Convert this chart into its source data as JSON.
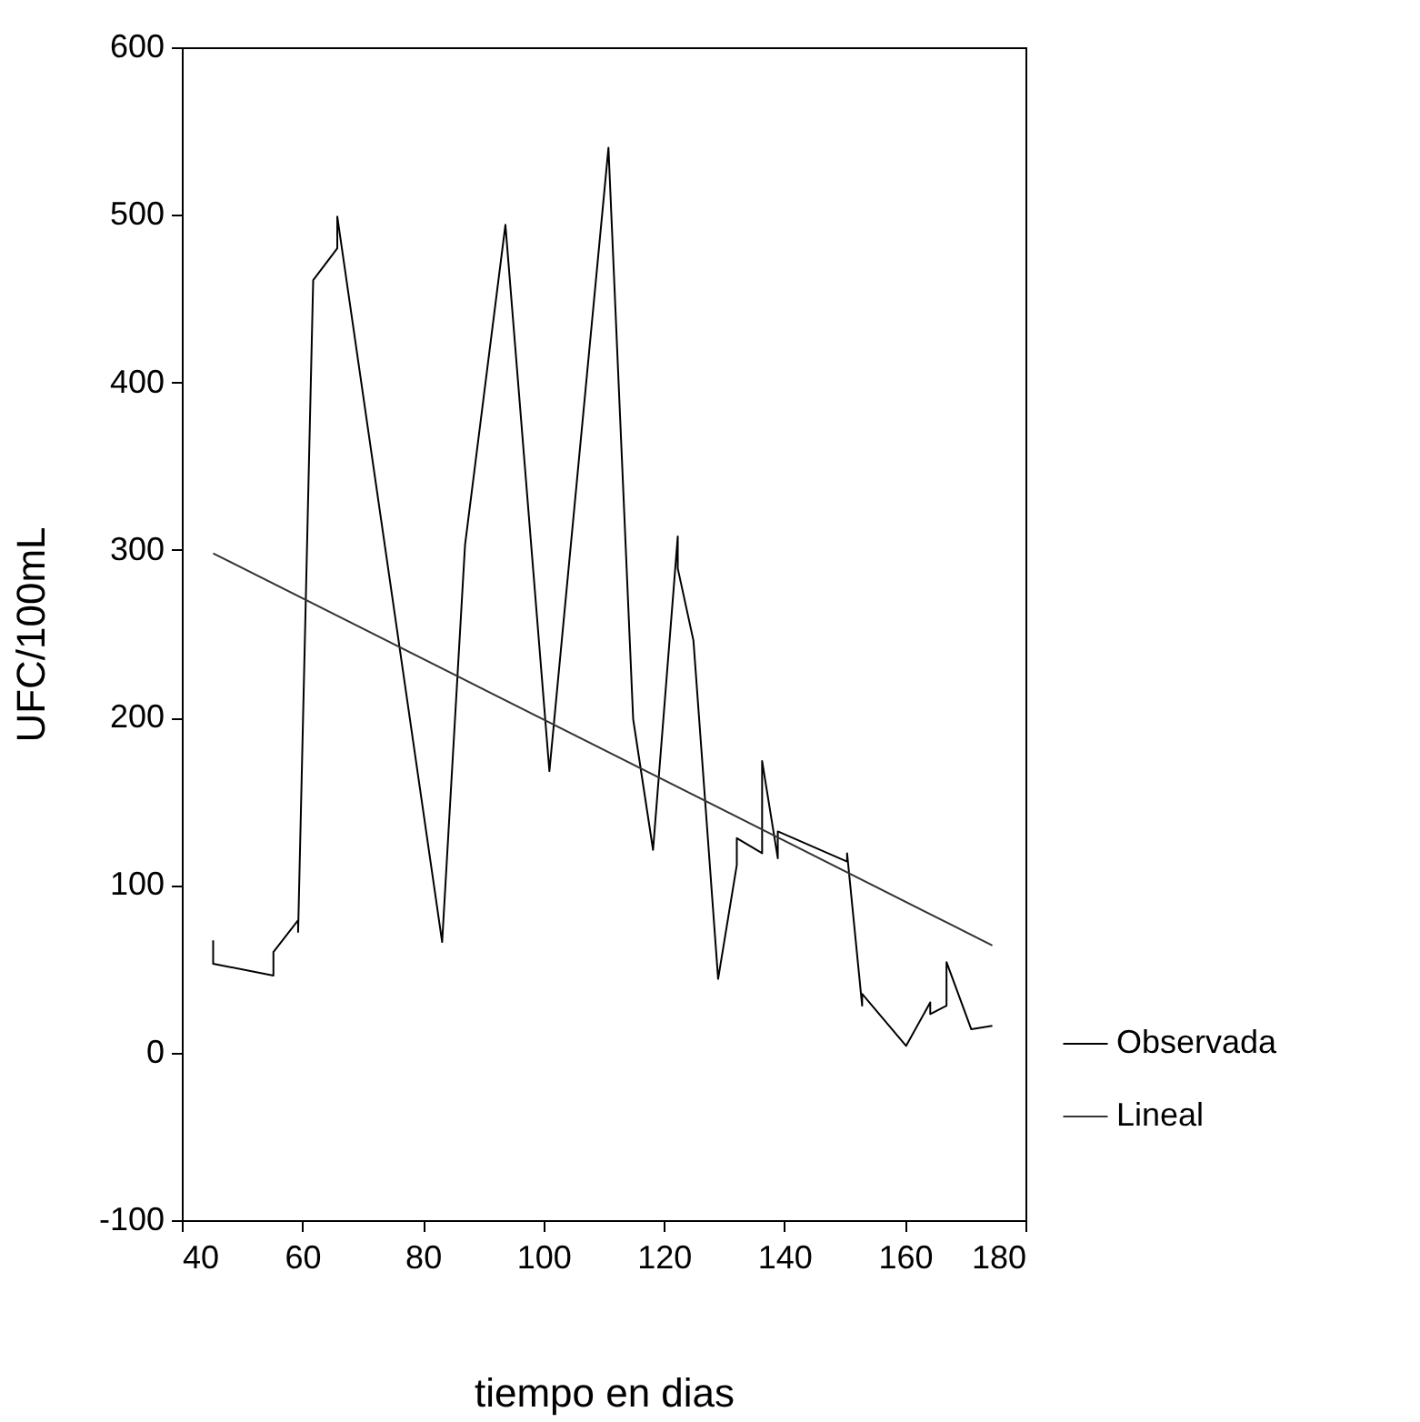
{
  "chart_data": {
    "type": "line",
    "xlabel": "tiempo en dias",
    "ylabel": "UFC/100mL",
    "xlim": [
      40,
      180
    ],
    "xticks": [
      40,
      60,
      80,
      100,
      120,
      140,
      160,
      180
    ],
    "ylim": [
      -100,
      600
    ],
    "yticks": [
      -100,
      0,
      100,
      200,
      300,
      400,
      500,
      600
    ],
    "grid": false,
    "legend": "right",
    "marker": "none",
    "line_style": "solid",
    "series": [
      {
        "name": "Observada",
        "color": "#000000",
        "x": [
          45.2,
          45.2,
          55.2,
          55.2,
          59.3,
          59.3,
          61.8,
          65.8,
          65.8,
          83.2,
          87.0,
          93.7,
          101.0,
          110.8,
          114.9,
          118.2,
          122.3,
          122.3,
          124.9,
          129.0,
          132.1,
          132.1,
          136.3,
          136.3,
          138.9,
          138.9,
          150.4,
          150.4,
          152.9,
          152.9,
          160.2,
          164.2,
          164.2,
          166.9,
          166.9,
          171.0,
          174.5
        ],
        "values": [
          67,
          53,
          46,
          60,
          79,
          72,
          461,
          480,
          499,
          66,
          303,
          494,
          168,
          540,
          199,
          121,
          308,
          289,
          246,
          44,
          112,
          128,
          119,
          174,
          116,
          132,
          114,
          119,
          28,
          35,
          4,
          30,
          23,
          28,
          54,
          14,
          16
        ]
      },
      {
        "name": "Lineal",
        "color": "#333333",
        "x": [
          45.2,
          174.5
        ],
        "values": [
          298,
          64
        ]
      }
    ]
  }
}
